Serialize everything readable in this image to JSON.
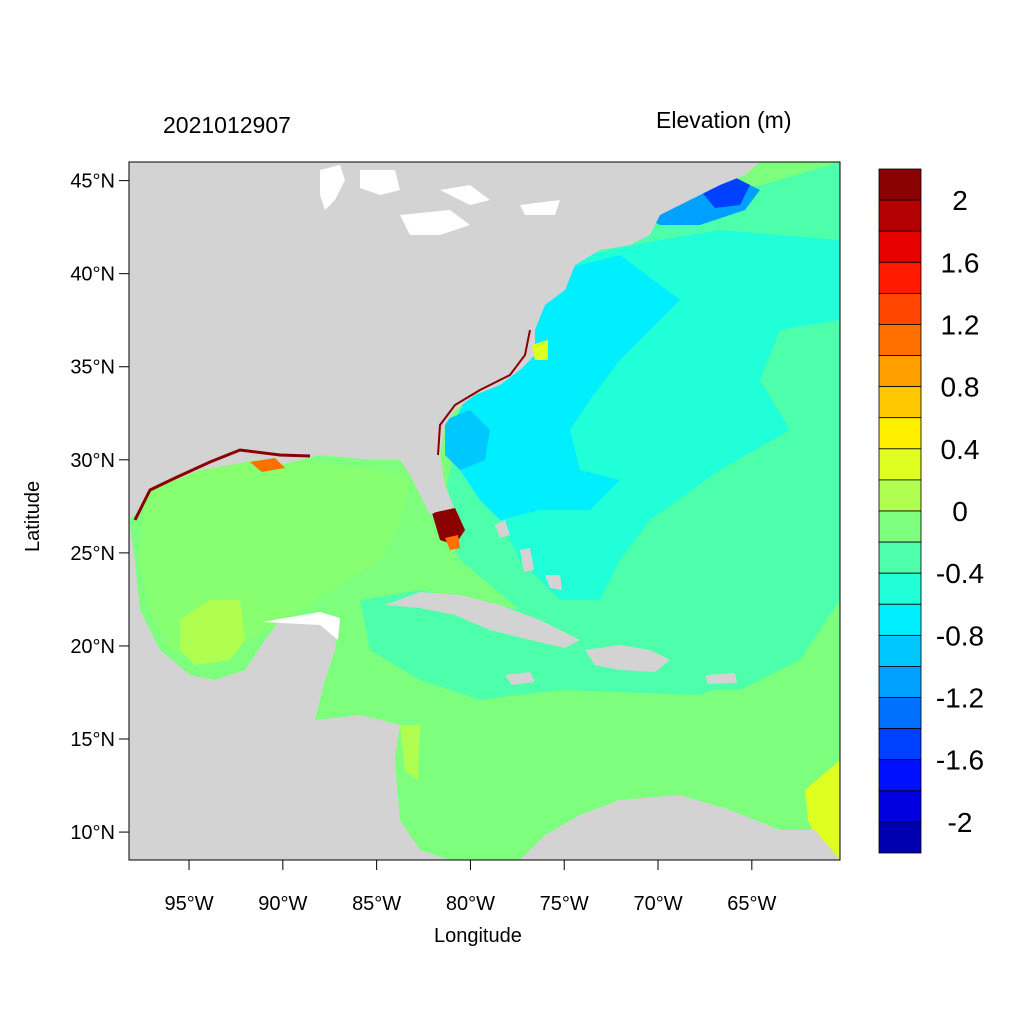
{
  "map": {
    "date_label": "2021012907",
    "units_label": "Elevation (m)",
    "x_axis_title": "Longitude",
    "y_axis_title": "Latitude",
    "lon_range": [
      -98.2,
      -60.3
    ],
    "lat_range": [
      8.5,
      46.0
    ],
    "lon_ticks": [
      "95°W",
      "90°W",
      "85°W",
      "80°W",
      "75°W",
      "70°W",
      "65°W"
    ],
    "lat_ticks": [
      "45°N",
      "40°N",
      "35°N",
      "30°N",
      "25°N",
      "20°N",
      "15°N",
      "10°N"
    ],
    "land_color": "#d3d3d3",
    "ocean_base_color": "#7dff7d"
  },
  "colorbar": {
    "colors": [
      "#8b0000",
      "#b30000",
      "#e60000",
      "#ff1a00",
      "#ff4500",
      "#ff7000",
      "#ff9f00",
      "#ffc800",
      "#fff000",
      "#dfff20",
      "#b0ff50",
      "#7dff7d",
      "#4dffaa",
      "#20ffd8",
      "#00efff",
      "#00c8ff",
      "#00a0ff",
      "#0070ff",
      "#0040ff",
      "#0010ff",
      "#0000e0",
      "#0000b0"
    ],
    "labels": [
      "2",
      "1.6",
      "1.2",
      "0.8",
      "0.4",
      "0",
      "-0.4",
      "-0.8",
      "-1.2",
      "-1.6",
      "-2"
    ]
  }
}
